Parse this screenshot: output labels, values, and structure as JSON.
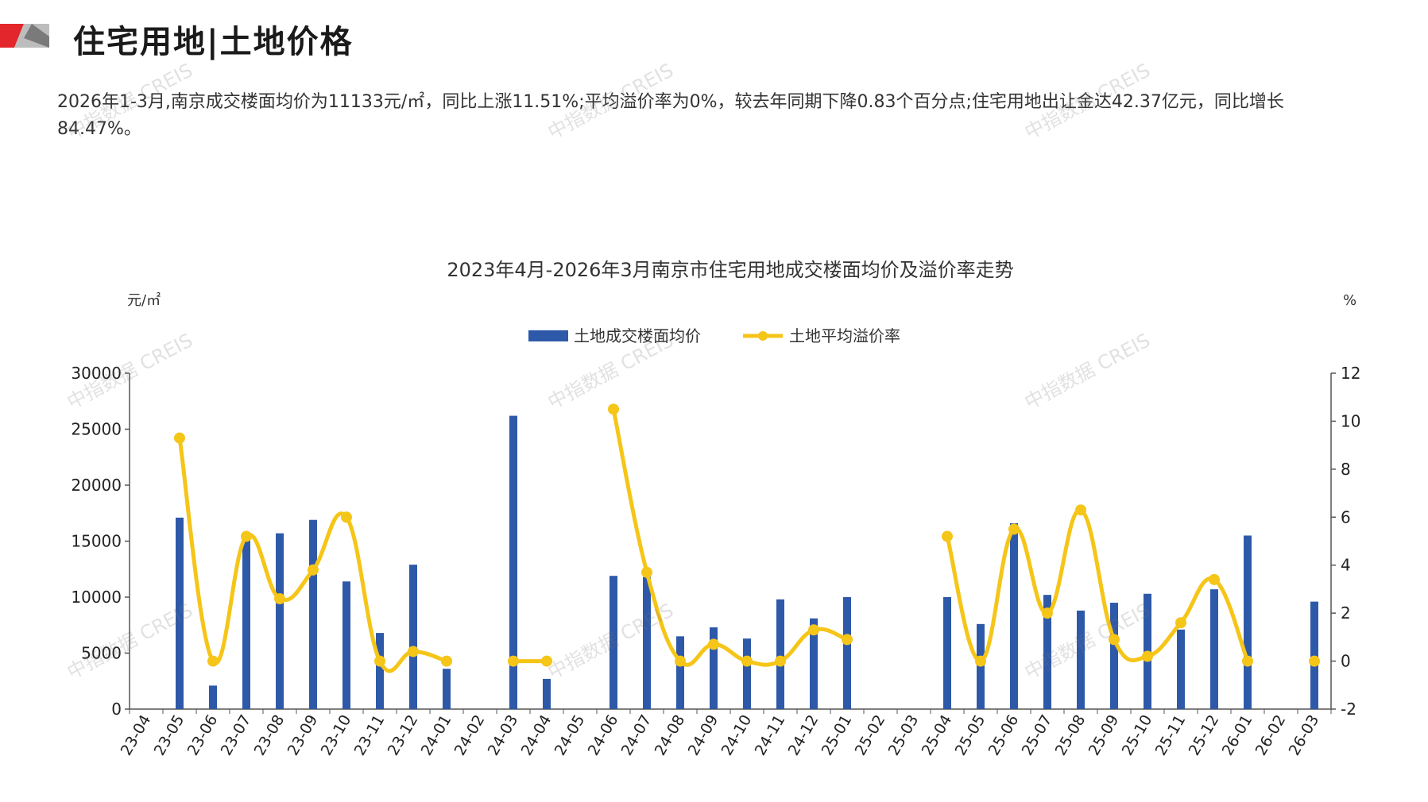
{
  "header": {
    "title": "住宅用地|土地价格",
    "summary": "2026年1-3月,南京成交楼面均价为11133元/㎡，同比上涨11.51%;平均溢价率为0%，较去年同期下降0.83个百分点;住宅用地出让金达42.37亿元，同比增长84.47%。",
    "watermark": "中指数据 CREIS"
  },
  "colors": {
    "bar": "#2E59A8",
    "line": "#F5C518",
    "brand_red": "#E3262B",
    "brand_gray": "#8C8C8C"
  },
  "chart_data": {
    "type": "bar+line",
    "title": "2023年4月-2026年3月南京市住宅用地成交楼面均价及溢价率走势",
    "y_left_unit": "元/㎡",
    "y_right_unit": "%",
    "y_left_lim": [
      0,
      30000
    ],
    "y_left_ticks": [
      0,
      5000,
      10000,
      15000,
      20000,
      25000,
      30000
    ],
    "y_right_lim": [
      -2,
      12
    ],
    "y_right_ticks": [
      -2,
      0,
      2,
      4,
      6,
      8,
      10,
      12
    ],
    "legend_position": "top-center",
    "categories": [
      "23-04",
      "23-05",
      "23-06",
      "23-07",
      "23-08",
      "23-09",
      "23-10",
      "23-11",
      "23-12",
      "24-01",
      "24-02",
      "24-03",
      "24-04",
      "24-05",
      "24-06",
      "24-07",
      "24-08",
      "24-09",
      "24-10",
      "24-11",
      "24-12",
      "25-01",
      "25-02",
      "25-03",
      "25-04",
      "25-05",
      "25-06",
      "25-07",
      "25-08",
      "25-09",
      "25-10",
      "25-11",
      "25-12",
      "26-01",
      "26-02",
      "26-03"
    ],
    "series": [
      {
        "name": "土地成交楼面均价",
        "type": "bar",
        "axis": "left",
        "values": [
          null,
          17100,
          2100,
          15100,
          15700,
          16900,
          11400,
          6800,
          12900,
          3600,
          null,
          26200,
          2700,
          null,
          11900,
          11800,
          6500,
          7300,
          6300,
          9800,
          8100,
          10000,
          null,
          null,
          10000,
          7600,
          16600,
          10200,
          8800,
          9500,
          10300,
          7100,
          10700,
          15500,
          null,
          9600
        ]
      },
      {
        "name": "土地平均溢价率",
        "type": "line",
        "axis": "right",
        "values": [
          null,
          9.3,
          0.0,
          5.2,
          2.6,
          3.8,
          6.0,
          0.0,
          0.4,
          0.0,
          null,
          0.0,
          0.0,
          null,
          10.5,
          3.7,
          0.0,
          0.7,
          0.0,
          0.0,
          1.3,
          0.9,
          null,
          null,
          5.2,
          0.0,
          5.5,
          2.0,
          6.3,
          0.9,
          0.2,
          1.6,
          3.4,
          0.0,
          null,
          0.0
        ]
      }
    ]
  }
}
